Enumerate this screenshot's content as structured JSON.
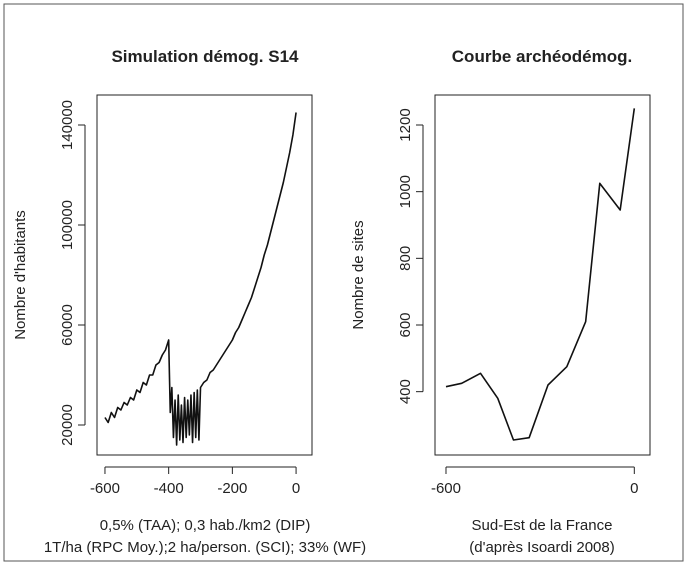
{
  "chart_data": [
    {
      "type": "line",
      "title": "Simulation démog. S14",
      "ylabel": "Nombre d'habitants",
      "xlabel_lines": [
        "0,5% (TAA); 0,3 hab./km2 (DIP)",
        "1T/ha (RPC Moy.);2 ha/person. (SCI); 33% (WF)"
      ],
      "x": [
        -600,
        -590,
        -580,
        -570,
        -560,
        -550,
        -540,
        -530,
        -520,
        -510,
        -500,
        -490,
        -480,
        -470,
        -460,
        -450,
        -440,
        -430,
        -420,
        -410,
        -400,
        -395,
        -390,
        -385,
        -380,
        -375,
        -370,
        -365,
        -360,
        -355,
        -350,
        -345,
        -340,
        -335,
        -330,
        -325,
        -320,
        -315,
        -310,
        -305,
        -300,
        -290,
        -280,
        -270,
        -260,
        -250,
        -240,
        -230,
        -220,
        -210,
        -200,
        -190,
        -180,
        -170,
        -160,
        -150,
        -140,
        -130,
        -120,
        -110,
        -100,
        -90,
        -80,
        -70,
        -60,
        -50,
        -40,
        -30,
        -20,
        -10,
        0
      ],
      "series": [
        {
          "color": "#111111",
          "values": [
            23000,
            21000,
            25000,
            23000,
            27000,
            26000,
            29000,
            28000,
            31000,
            30000,
            34000,
            33000,
            37000,
            36000,
            40000,
            40000,
            44000,
            45000,
            48000,
            50000,
            54000,
            25000,
            35000,
            15000,
            30000,
            12000,
            32000,
            14000,
            28000,
            13000,
            31000,
            15000,
            30000,
            16000,
            32000,
            13000,
            33000,
            15000,
            34000,
            14000,
            35000,
            37000,
            38000,
            41000,
            42000,
            44000,
            46000,
            48000,
            50000,
            52000,
            54000,
            57000,
            59000,
            62000,
            65000,
            68000,
            71000,
            75000,
            79000,
            83000,
            88000,
            92000,
            97000,
            102000,
            107000,
            112000,
            117000,
            123000,
            129000,
            136000,
            145000
          ]
        }
      ],
      "xlim": [
        -625,
        50
      ],
      "xticks": [
        -600,
        -400,
        -200,
        0
      ],
      "ylim": [
        8000,
        152000
      ],
      "yticks": [
        20000,
        60000,
        100000,
        140000
      ]
    },
    {
      "type": "line",
      "title": "Courbe archéodémog.",
      "ylabel": "Nombre de sites",
      "xlabel_lines": [
        "Sud-Est de la France",
        "(d'après Isoardi 2008)"
      ],
      "x": [
        -600,
        -550,
        -490,
        -435,
        -385,
        -335,
        -275,
        -215,
        -155,
        -110,
        -45,
        0
      ],
      "series": [
        {
          "color": "#111111",
          "values": [
            415,
            425,
            455,
            380,
            255,
            262,
            420,
            475,
            610,
            1025,
            945,
            1250
          ]
        }
      ],
      "xlim": [
        -635,
        50
      ],
      "xticks": [
        -600,
        0
      ],
      "ylim": [
        210,
        1290
      ],
      "yticks": [
        400,
        600,
        800,
        1000,
        1200
      ]
    }
  ]
}
